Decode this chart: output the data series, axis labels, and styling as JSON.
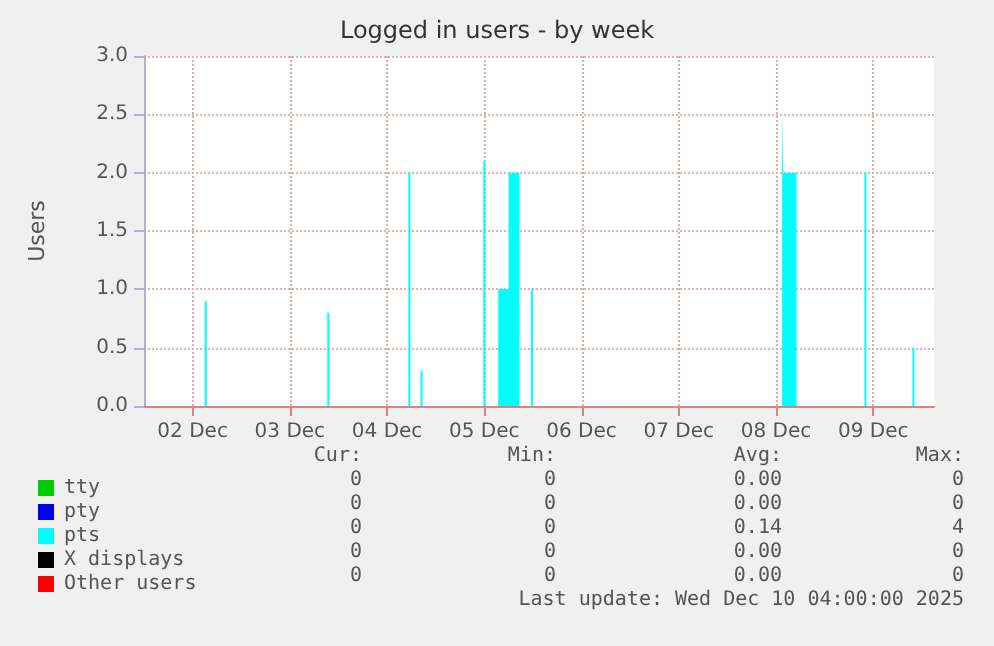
{
  "chart_data": {
    "type": "area",
    "title": "Logged in users - by week",
    "ylabel": "Users",
    "xlim": [
      "2025-12-02T00:00",
      "2025-12-10T03:00"
    ],
    "xticks": [
      {
        "value": "2025-12-02T12:00",
        "label": "02 Dec"
      },
      {
        "value": "2025-12-03T12:00",
        "label": "03 Dec"
      },
      {
        "value": "2025-12-04T12:00",
        "label": "04 Dec"
      },
      {
        "value": "2025-12-05T12:00",
        "label": "05 Dec"
      },
      {
        "value": "2025-12-06T12:00",
        "label": "06 Dec"
      },
      {
        "value": "2025-12-07T12:00",
        "label": "07 Dec"
      },
      {
        "value": "2025-12-08T12:00",
        "label": "08 Dec"
      },
      {
        "value": "2025-12-09T12:00",
        "label": "09 Dec"
      }
    ],
    "ylim": [
      0,
      3
    ],
    "yticks": [
      {
        "value": 0,
        "label": "0.0"
      },
      {
        "value": 0.5,
        "label": "0.5"
      },
      {
        "value": 1,
        "label": "1.0"
      },
      {
        "value": 1.5,
        "label": "1.5"
      },
      {
        "value": 2,
        "label": "2.0"
      },
      {
        "value": 2.5,
        "label": "2.5"
      },
      {
        "value": 3,
        "label": "3.0"
      }
    ],
    "grid": true,
    "legend": "bottom left",
    "series": [
      {
        "name": "tty",
        "color": "#00cc00",
        "type": "line"
      },
      {
        "name": "pty",
        "color": "#0000ff",
        "type": "line"
      },
      {
        "name": "pts",
        "color": "#00ffff",
        "x": [
          "2025-12-02T00:00",
          "2025-12-02T15:00",
          "2025-12-02T15:30",
          "2025-12-03T21:15",
          "2025-12-03T21:45",
          "2025-12-04T17:15",
          "2025-12-04T17:45",
          "2025-12-04T20:15",
          "2025-12-04T20:45",
          "2025-12-05T11:45",
          "2025-12-05T12:15",
          "2025-12-05T15:25",
          "2025-12-05T18:00",
          "2025-12-05T20:40",
          "2025-12-05T23:30",
          "2025-12-06T00:00",
          "2025-12-08T13:30",
          "2025-12-08T13:45",
          "2025-12-08T17:05",
          "2025-12-09T09:50",
          "2025-12-09T10:20",
          "2025-12-09T21:40",
          "2025-12-09T22:10",
          "2025-12-10T03:00"
        ],
        "values": [
          0,
          0.9,
          0,
          0.8,
          0,
          2.0,
          0,
          0.3,
          0,
          2.1,
          0,
          1.0,
          2.0,
          0,
          1.0,
          0,
          2.6,
          2.0,
          0,
          2.0,
          0,
          0.5,
          0,
          0
        ]
      },
      {
        "name": "X displays",
        "color": "#000000",
        "type": "line"
      },
      {
        "name": "Other users",
        "color": "#ff0000",
        "type": "line"
      }
    ],
    "annotations": [
      "Cur:",
      "Min:",
      "Avg:",
      "Max:",
      "0",
      "0",
      "0.00",
      "0",
      "0",
      "0",
      "0.00",
      "0",
      "0",
      "0",
      "0.14",
      "4",
      "0",
      "0",
      "0.00",
      "0",
      "0",
      "0",
      "0.00",
      "0",
      "Last update: Wed Dec 10 04:00:00 2025"
    ]
  }
}
